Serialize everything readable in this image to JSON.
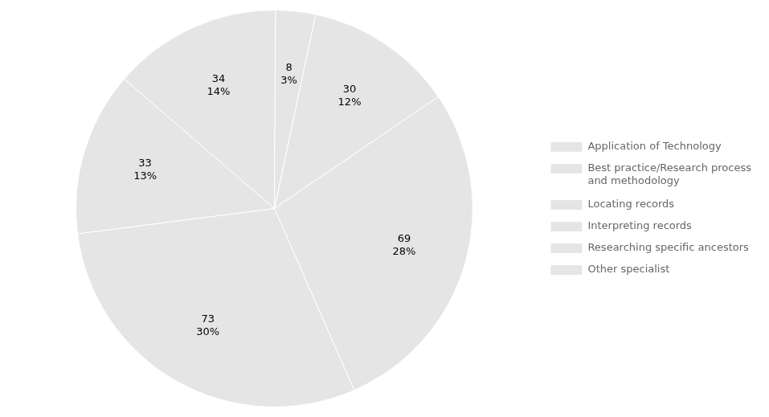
{
  "chart_data": {
    "type": "pie",
    "categories": [
      "Application of Technology",
      "Best practice/Research process\nand methodology",
      "Locating records",
      "Interpreting records",
      "Researching specific ancestors",
      "Other specialist"
    ],
    "values": [
      30,
      69,
      73,
      33,
      34,
      8
    ],
    "value_labels": [
      "30\n12%",
      "69\n28%",
      "73\n30%",
      "33\n13%",
      "34\n14%",
      "8\n3%"
    ],
    "data_labels": true,
    "legend": "right"
  }
}
